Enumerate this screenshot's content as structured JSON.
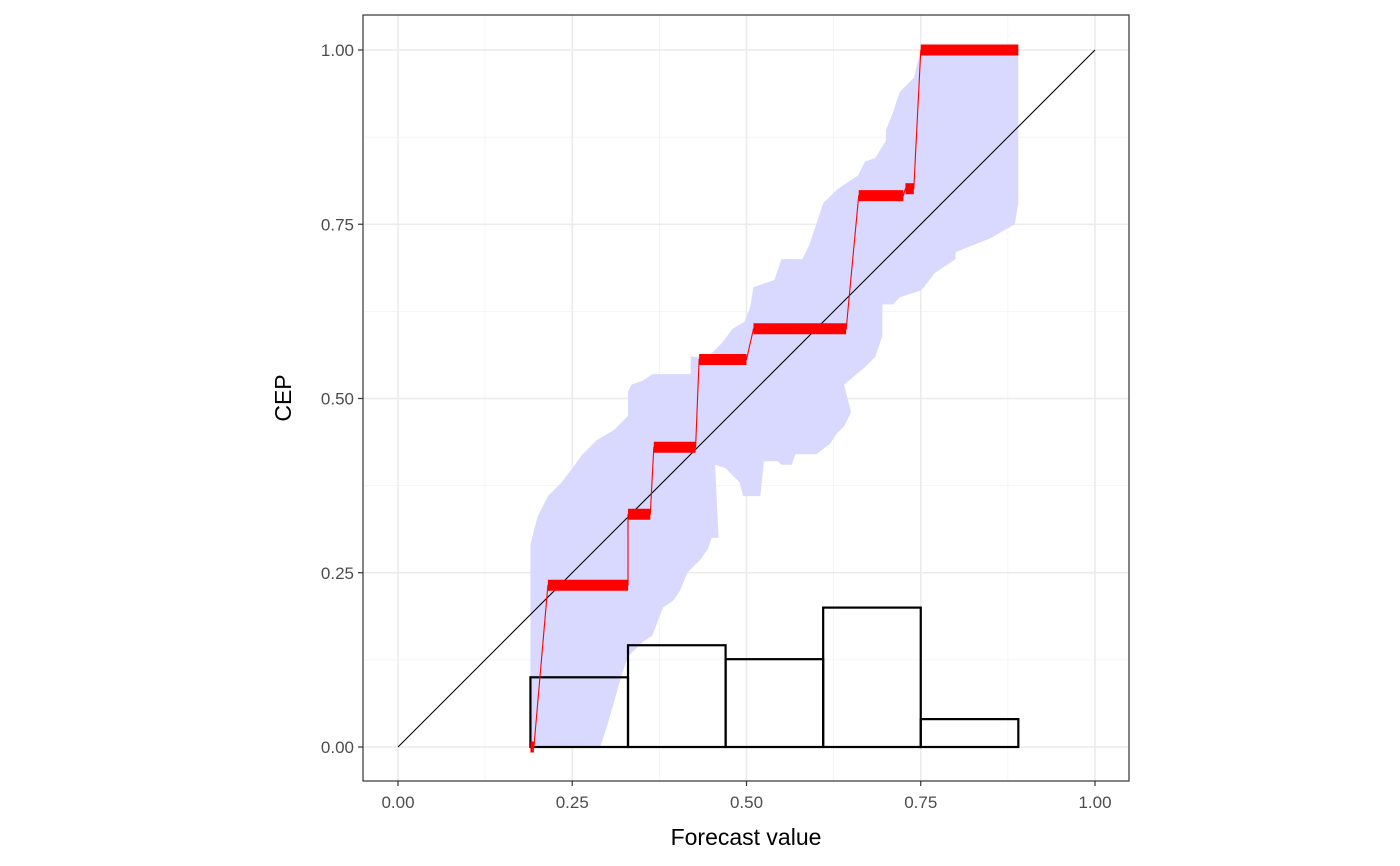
{
  "chart_data": {
    "type": "line",
    "xlabel": "Forecast value",
    "ylabel": "CEP",
    "xlim": [
      -0.1,
      1.1
    ],
    "ylim": [
      -0.05,
      1.05
    ],
    "x_ticks": [
      "0.00",
      "0.25",
      "0.50",
      "0.75",
      "1.00"
    ],
    "y_ticks": [
      "0.00",
      "0.25",
      "0.50",
      "0.75",
      "1.00"
    ],
    "grid": true,
    "colors": {
      "cep_line": "#ff0000",
      "confidence_band": "#d9d9ff",
      "diagonal": "#000000",
      "histogram_outline": "#000000"
    },
    "diagonal": [
      [
        0,
        0
      ],
      [
        1,
        1
      ]
    ],
    "cep_steps": [
      {
        "x0": 0.19,
        "x1": 0.195,
        "y": 0.0
      },
      {
        "x0": 0.215,
        "x1": 0.33,
        "y": 0.232
      },
      {
        "x0": 0.33,
        "x1": 0.362,
        "y": 0.334
      },
      {
        "x0": 0.367,
        "x1": 0.427,
        "y": 0.43
      },
      {
        "x0": 0.432,
        "x1": 0.5,
        "y": 0.556
      },
      {
        "x0": 0.51,
        "x1": 0.643,
        "y": 0.6
      },
      {
        "x0": 0.661,
        "x1": 0.725,
        "y": 0.791
      },
      {
        "x0": 0.728,
        "x1": 0.74,
        "y": 0.801
      },
      {
        "x0": 0.75,
        "x1": 0.89,
        "y": 1.0
      }
    ],
    "band_upper": [
      [
        0.19,
        0.25
      ],
      [
        0.19,
        0.29
      ],
      [
        0.2,
        0.33
      ],
      [
        0.215,
        0.36
      ],
      [
        0.235,
        0.38
      ],
      [
        0.25,
        0.4
      ],
      [
        0.265,
        0.42
      ],
      [
        0.285,
        0.44
      ],
      [
        0.31,
        0.455
      ],
      [
        0.33,
        0.475
      ],
      [
        0.33,
        0.51
      ],
      [
        0.335,
        0.52
      ],
      [
        0.35,
        0.525
      ],
      [
        0.365,
        0.535
      ],
      [
        0.42,
        0.535
      ],
      [
        0.42,
        0.56
      ],
      [
        0.445,
        0.56
      ],
      [
        0.465,
        0.58
      ],
      [
        0.48,
        0.6
      ],
      [
        0.497,
        0.61
      ],
      [
        0.505,
        0.63
      ],
      [
        0.51,
        0.66
      ],
      [
        0.54,
        0.67
      ],
      [
        0.55,
        0.7
      ],
      [
        0.58,
        0.7
      ],
      [
        0.59,
        0.72
      ],
      [
        0.6,
        0.75
      ],
      [
        0.61,
        0.78
      ],
      [
        0.63,
        0.8
      ],
      [
        0.645,
        0.81
      ],
      [
        0.66,
        0.82
      ],
      [
        0.67,
        0.84
      ],
      [
        0.685,
        0.845
      ],
      [
        0.7,
        0.87
      ],
      [
        0.7,
        0.885
      ],
      [
        0.71,
        0.91
      ],
      [
        0.72,
        0.94
      ],
      [
        0.74,
        0.96
      ],
      [
        0.75,
        1.0
      ],
      [
        0.89,
        1.0
      ]
    ],
    "band_lower": [
      [
        0.89,
        0.78
      ],
      [
        0.885,
        0.75
      ],
      [
        0.85,
        0.73
      ],
      [
        0.8,
        0.71
      ],
      [
        0.8,
        0.7
      ],
      [
        0.77,
        0.68
      ],
      [
        0.755,
        0.66
      ],
      [
        0.75,
        0.655
      ],
      [
        0.735,
        0.65
      ],
      [
        0.72,
        0.645
      ],
      [
        0.71,
        0.635
      ],
      [
        0.695,
        0.635
      ],
      [
        0.695,
        0.59
      ],
      [
        0.685,
        0.56
      ],
      [
        0.67,
        0.545
      ],
      [
        0.64,
        0.52
      ],
      [
        0.65,
        0.48
      ],
      [
        0.64,
        0.46
      ],
      [
        0.63,
        0.45
      ],
      [
        0.62,
        0.435
      ],
      [
        0.6,
        0.42
      ],
      [
        0.57,
        0.42
      ],
      [
        0.565,
        0.405
      ],
      [
        0.55,
        0.405
      ],
      [
        0.545,
        0.41
      ],
      [
        0.525,
        0.41
      ],
      [
        0.52,
        0.36
      ],
      [
        0.495,
        0.36
      ],
      [
        0.49,
        0.38
      ],
      [
        0.48,
        0.39
      ],
      [
        0.47,
        0.4
      ],
      [
        0.455,
        0.405
      ],
      [
        0.46,
        0.3
      ],
      [
        0.45,
        0.3
      ],
      [
        0.445,
        0.285
      ],
      [
        0.435,
        0.27
      ],
      [
        0.425,
        0.26
      ],
      [
        0.415,
        0.25
      ],
      [
        0.405,
        0.225
      ],
      [
        0.395,
        0.21
      ],
      [
        0.38,
        0.2
      ],
      [
        0.365,
        0.16
      ],
      [
        0.35,
        0.15
      ],
      [
        0.33,
        0.13
      ],
      [
        0.32,
        0.1
      ],
      [
        0.31,
        0.065
      ],
      [
        0.3,
        0.03
      ],
      [
        0.29,
        0.0
      ],
      [
        0.19,
        0.0
      ]
    ],
    "histogram": [
      {
        "x0": 0.19,
        "x1": 0.33,
        "y": 0.1
      },
      {
        "x0": 0.33,
        "x1": 0.47,
        "y": 0.146
      },
      {
        "x0": 0.47,
        "x1": 0.61,
        "y": 0.126
      },
      {
        "x0": 0.61,
        "x1": 0.75,
        "y": 0.2
      },
      {
        "x0": 0.75,
        "x1": 0.89,
        "y": 0.04
      }
    ]
  }
}
